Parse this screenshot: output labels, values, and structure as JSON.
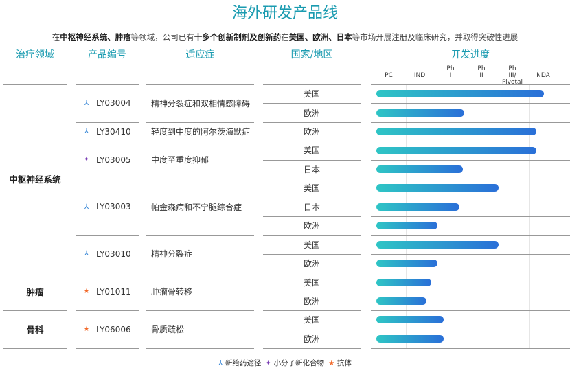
{
  "title": "海外研发产品线",
  "subtitle": [
    {
      "t": "在",
      "b": false
    },
    {
      "t": "中枢神经系统、肿瘤",
      "b": true
    },
    {
      "t": "等领域，公司已有",
      "b": false
    },
    {
      "t": "十多个创新制剂及创新药",
      "b": true
    },
    {
      "t": "在",
      "b": false
    },
    {
      "t": "美国、欧洲、日本",
      "b": true
    },
    {
      "t": "等市场开展注册及临床研究，并取得突破性进展",
      "b": false
    }
  ],
  "headers": {
    "area": "治疗领域",
    "product": "产品编号",
    "indication": "适应症",
    "country": "国家/地区",
    "progress": "开发进度"
  },
  "stages": [
    "PC",
    "IND",
    "Ph I",
    "Ph II",
    "Ph III/ Pivotal",
    "NDA"
  ],
  "colors": {
    "accent": "#1a9bb0",
    "bar_start": "#2ec5c5",
    "bar_end": "#2a6fd8",
    "new_route": "#2b7fd4",
    "small_molecule": "#7b3fb5",
    "antibody": "#f26a2b"
  },
  "areas": [
    {
      "name": "中枢神经系统",
      "rows": 10
    },
    {
      "name": "肿瘤",
      "rows": 2
    },
    {
      "name": "骨科",
      "rows": 2
    }
  ],
  "products": [
    {
      "code": "LY03004",
      "type": "new_route",
      "icon": "new-route-icon",
      "indication": "精神分裂症和双相情感障碍",
      "rows": 2
    },
    {
      "code": "LY30410",
      "type": "new_route",
      "icon": "new-route-icon",
      "indication": "轻度到中度的阿尔茨海默症",
      "rows": 1
    },
    {
      "code": "LY03005",
      "type": "small_molecule",
      "icon": "small-molecule-icon",
      "indication": "中度至重度抑郁",
      "rows": 2
    },
    {
      "code": "LY03003",
      "type": "new_route",
      "icon": "new-route-icon",
      "indication": "帕金森病和不宁腿综合症",
      "rows": 3
    },
    {
      "code": "LY03010",
      "type": "new_route",
      "icon": "new-route-icon",
      "indication": "精神分裂症",
      "rows": 2
    },
    {
      "code": "LY01011",
      "type": "antibody",
      "icon": "antibody-icon",
      "indication": "肿瘤骨转移",
      "rows": 2
    },
    {
      "code": "LY06006",
      "type": "antibody",
      "icon": "antibody-icon",
      "indication": "骨质疏松",
      "rows": 2
    }
  ],
  "rows": [
    {
      "country": "美国",
      "progress": 5.02
    },
    {
      "country": "欧洲",
      "progress": 2.44
    },
    {
      "country": "欧洲",
      "progress": 4.78
    },
    {
      "country": "美国",
      "progress": 4.78
    },
    {
      "country": "日本",
      "progress": 2.4
    },
    {
      "country": "美国",
      "progress": 3.56
    },
    {
      "country": "日本",
      "progress": 2.29
    },
    {
      "country": "欧洲",
      "progress": 1.58
    },
    {
      "country": "美国",
      "progress": 3.56
    },
    {
      "country": "欧洲",
      "progress": 1.58
    },
    {
      "country": "美国",
      "progress": 1.38
    },
    {
      "country": "欧洲",
      "progress": 1.22
    },
    {
      "country": "美国",
      "progress": 1.78
    },
    {
      "country": "欧洲",
      "progress": 1.78
    }
  ],
  "legend": [
    {
      "icon": "new-route-icon",
      "type": "new_route",
      "label": "新给药途径"
    },
    {
      "icon": "small-molecule-icon",
      "type": "small_molecule",
      "label": "小分子新化合物"
    },
    {
      "icon": "antibody-icon",
      "type": "antibody",
      "label": "抗体"
    }
  ]
}
